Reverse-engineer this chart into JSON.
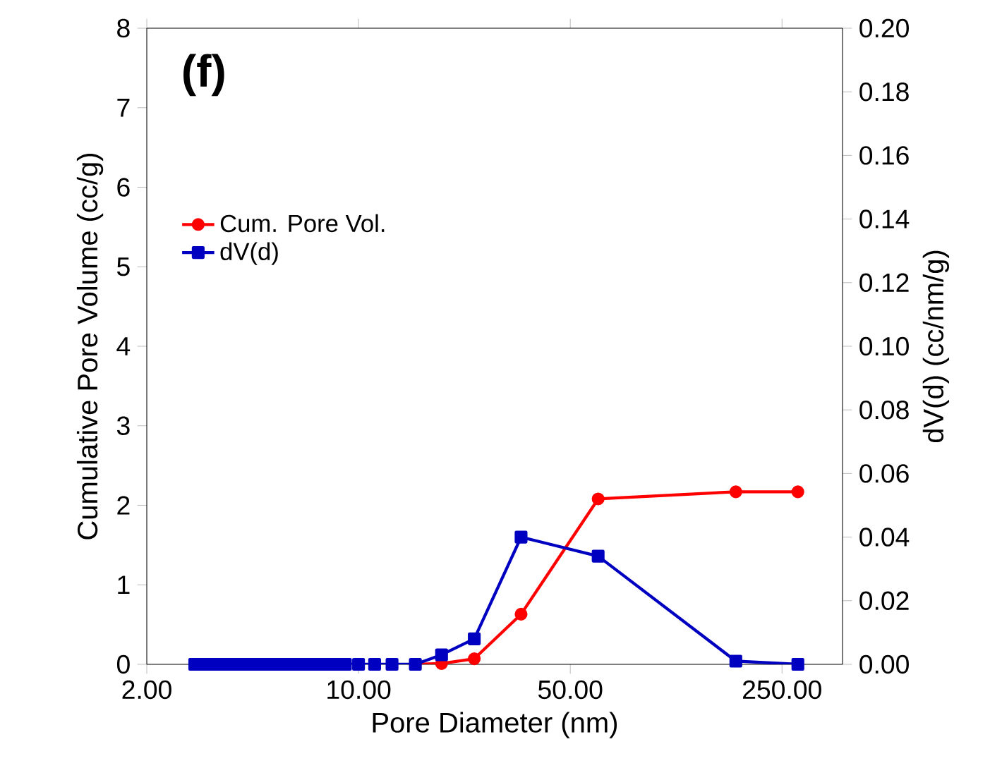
{
  "chart_data": {
    "type": "line",
    "xlabel": "Pore Diameter (nm)",
    "ylabel": "Cumulative Pore Volume (cc/g)",
    "y2label": "dV(d) (cc/nm/g)",
    "annotations": [
      "**(f)**"
    ],
    "log": "x",
    "legend": "left",
    "xlim": [
      2,
      396
    ],
    "xticks": [
      {
        "value": 2,
        "label": "2.00"
      },
      {
        "value": 10,
        "label": "10.00"
      },
      {
        "value": 50,
        "label": "50.00"
      },
      {
        "value": 250,
        "label": "250.00"
      }
    ],
    "ylim": [
      0,
      8
    ],
    "yticks": [
      0,
      1,
      2,
      3,
      4,
      5,
      6,
      7,
      8
    ],
    "y2lim": [
      0,
      0.2
    ],
    "y2ticks": [
      {
        "value": 0,
        "label": "0.00"
      },
      {
        "value": 0.02,
        "label": "0.02"
      },
      {
        "value": 0.04,
        "label": "0.04"
      },
      {
        "value": 0.06,
        "label": "0.06"
      },
      {
        "value": 0.08,
        "label": "0.08"
      },
      {
        "value": 0.1,
        "label": "0.10"
      },
      {
        "value": 0.12,
        "label": "0.12"
      },
      {
        "value": 0.14,
        "label": "0.14"
      },
      {
        "value": 0.16,
        "label": "0.16"
      },
      {
        "value": 0.18,
        "label": "0.18"
      },
      {
        "value": 0.2,
        "label": "0.20"
      }
    ],
    "series": [
      {
        "name": "Cum. Pore Vol.",
        "color": "#ff0000",
        "marker": "circle",
        "x": [
          15.4,
          18.8,
          24.1,
          34.4,
          61.8,
          176,
          282
        ],
        "values": [
          0,
          0.01,
          0.07,
          0.63,
          2.08,
          2.17,
          2.17
        ]
      },
      {
        "name": "dV(d)",
        "color": "#0000c0",
        "marker": "square",
        "axis": "y2",
        "x": [
          2.88,
          3.05,
          3.24,
          3.44,
          3.66,
          3.88,
          4.12,
          4.38,
          4.65,
          4.94,
          5.25,
          5.58,
          5.92,
          6.29,
          6.68,
          7.1,
          7.54,
          8.0,
          8.5,
          9.05,
          10.0,
          11.3,
          12.9,
          15.4,
          18.8,
          24.1,
          34.4,
          61.8,
          176,
          282
        ],
        "values": [
          0,
          0,
          0,
          0,
          0,
          0,
          0,
          0,
          0,
          0,
          0,
          0,
          0,
          0,
          0,
          0,
          0,
          0,
          0,
          0,
          0,
          0,
          0,
          0,
          0.003,
          0.008,
          0.04,
          0.034,
          0.001,
          0
        ]
      }
    ]
  }
}
